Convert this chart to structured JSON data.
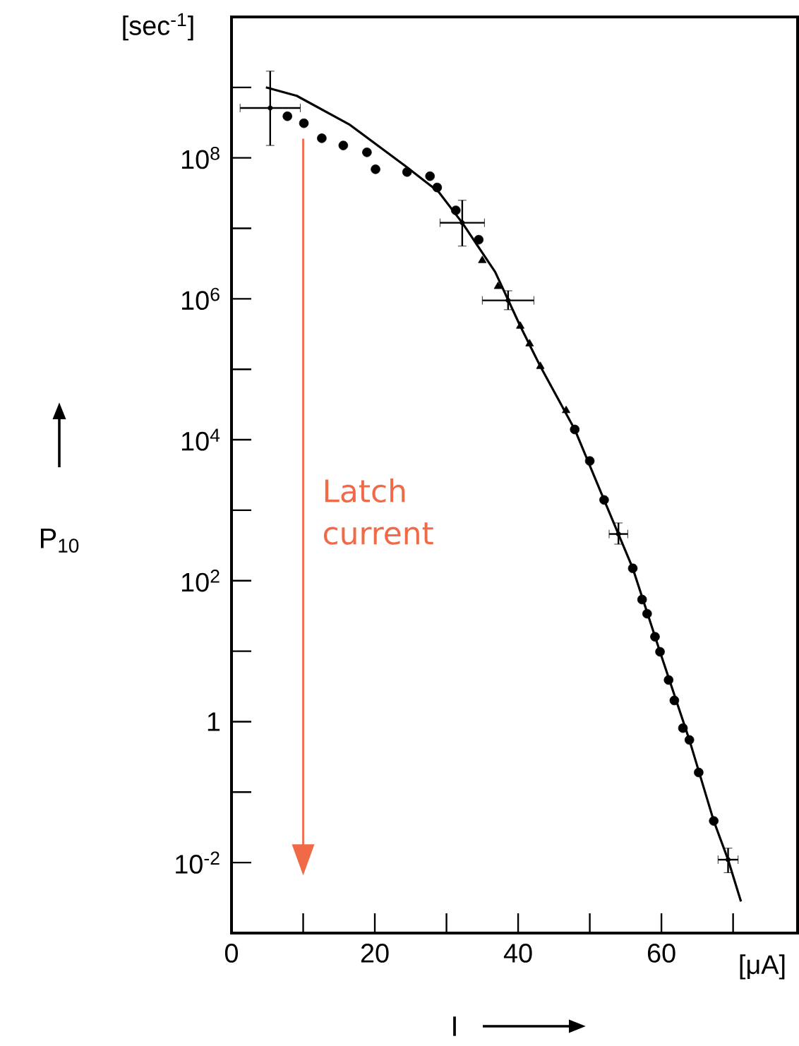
{
  "chart_data": {
    "type": "scatter",
    "xlabel": "I",
    "ylabel": "P$_{10}$",
    "annotations": [
      "[sec$^{-1}$]",
      "[μA]"
    ],
    "log": "y",
    "grid": false,
    "xlim": [
      0,
      79
    ],
    "ylim": [
      0.001,
      10000000000
    ],
    "xticks": [
      0,
      {
        "value": 10,
        "label": null
      },
      20,
      {
        "value": 30,
        "label": null
      },
      40,
      {
        "value": 50,
        "label": null
      },
      60,
      {
        "value": 70,
        "label": null
      }
    ],
    "yticks": [
      {
        "value": 0.01,
        "label": "10$^{-2}$"
      },
      {
        "value": 0.1,
        "label": null
      },
      {
        "value": 1,
        "label": "1"
      },
      {
        "value": 10,
        "label": null
      },
      {
        "value": 100,
        "label": "10$^{2}$"
      },
      {
        "value": 1000,
        "label": null
      },
      {
        "value": 10000,
        "label": "10$^{4}$"
      },
      {
        "value": 100000,
        "label": null
      },
      {
        "value": 1000000,
        "label": "10$^{6}$"
      },
      {
        "value": 10000000,
        "label": null
      },
      {
        "value": 100000000,
        "label": "10$^{8}$"
      },
      {
        "value": 1000000000,
        "label": null
      }
    ],
    "ref_lines": [
      {
        "axis": "x",
        "value": 10,
        "label": "Latch current",
        "color": "#f06a48"
      }
    ],
    "series": [
      {
        "type": "line",
        "color": "#000000",
        "marker": "none",
        "line_style": "solid",
        "x": [
          4.8,
          9.1,
          16.4,
          24.3,
          28.9,
          32.2,
          36.8,
          40.3,
          43.1,
          47.9,
          52,
          56,
          59.8,
          63.9,
          67.3,
          69.3,
          71.1
        ],
        "values": [
          1000000000.0,
          760000000.0,
          300000000.0,
          76000000.0,
          33000000.0,
          12000000.0,
          2400000.0,
          410000.0,
          110000.0,
          14000.0,
          1400.0,
          150,
          9.8,
          0.55,
          0.039,
          0.011,
          0.0028
        ]
      },
      {
        "type": "scatter",
        "color": "#000000",
        "marker": "circle",
        "x": [
          7.8,
          10.1,
          12.6,
          15.6,
          18.9,
          20.1,
          24.5,
          27.7,
          28.7,
          31.3,
          34.5
        ],
        "values": [
          390000000.0,
          310000000.0,
          190000000.0,
          150000000.0,
          120000000.0,
          69000000.0,
          63000000.0,
          55000000.0,
          38000000.0,
          18000000.0,
          6900000.0
        ]
      },
      {
        "type": "scatter",
        "color": "#000000",
        "marker": "triangle",
        "x": [
          35.0,
          37.2,
          40.3,
          41.6,
          43.1,
          46.7
        ],
        "values": [
          3500000.0,
          1500000.0,
          410000.0,
          230000.0,
          110000.0,
          26000.0
        ]
      },
      {
        "type": "scatter",
        "color": "#000000",
        "marker": "circle",
        "x": [
          47.9,
          50.0,
          52.0,
          56.0,
          57.3,
          58.0,
          59.1,
          59.8,
          61.0,
          61.8,
          63.0,
          63.9,
          65.2,
          67.3
        ],
        "values": [
          14000.0,
          5000.0,
          1400.0,
          150,
          54,
          34,
          16,
          9.8,
          3.9,
          2.0,
          0.81,
          0.55,
          0.19,
          0.039
        ]
      },
      {
        "type": "scatter",
        "color": "#000000",
        "marker": "cross",
        "x": [
          5.4,
          32.2,
          38.6,
          54.0,
          69.3
        ],
        "values": [
          510000000.0,
          12000000.0,
          950000.0,
          460,
          0.011
        ],
        "xerrors": [
          4.2,
          3.1,
          3.6,
          1.3,
          1.4
        ],
        "errors": [
          [
            150000000.0,
            1700000000.0
          ],
          [
            5600000.0,
            25000000.0
          ],
          [
            700000.0,
            1300000.0
          ],
          [
            330,
            660
          ],
          [
            0.0072,
            0.016
          ]
        ]
      }
    ]
  }
}
